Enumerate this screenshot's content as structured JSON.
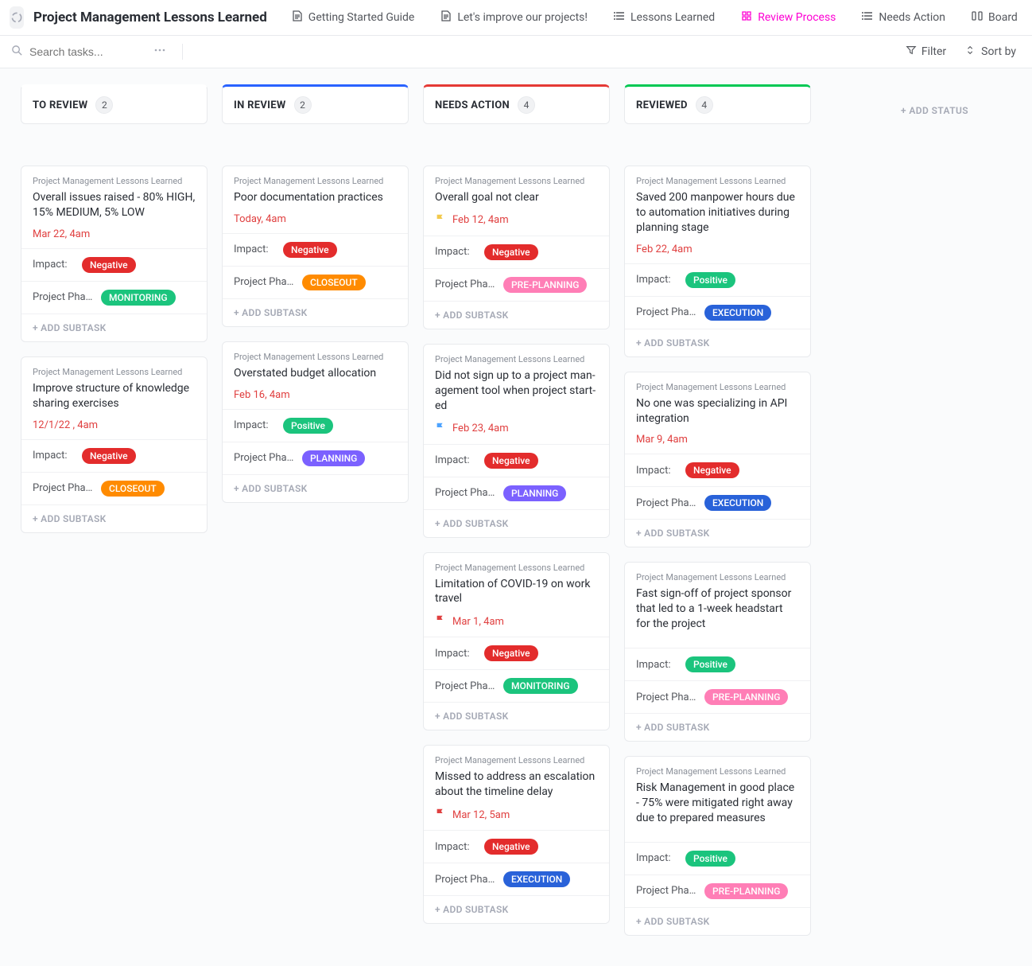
{
  "header": {
    "workspace_title": "Project Management Lessons Learned",
    "tabs": [
      {
        "label": "Getting Started Guide",
        "icon": "doc",
        "active": false
      },
      {
        "label": "Let's improve our projects!",
        "icon": "doc",
        "active": false
      },
      {
        "label": "Lessons Learned",
        "icon": "list",
        "active": false
      },
      {
        "label": "Review Process",
        "icon": "review",
        "active": true
      },
      {
        "label": "Needs Action",
        "icon": "list",
        "active": false
      },
      {
        "label": "Board",
        "icon": "board",
        "active": false
      }
    ]
  },
  "toolbar": {
    "search_placeholder": "Search tasks...",
    "filter_label": "Filter",
    "sort_label": "Sort by"
  },
  "board": {
    "add_status_label": "+ ADD STATUS",
    "add_subtask_label": "+ ADD SUBTASK",
    "impact_label": "Impact:",
    "phase_label": "Project Phase:",
    "project_label": "Project Management Lessons Learned",
    "columns": [
      {
        "title": "TO REVIEW",
        "count": "2",
        "accent": "",
        "cards": [
          {
            "title": "Overall issues raised - 80% HIGH, 15% MEDIUM, 5% LOW",
            "date": "Mar 22, 4am",
            "flag": "",
            "impact": "Negative",
            "impact_class": "b-negative",
            "phase": "MONITORING",
            "phase_class": "b-monitoring"
          },
          {
            "title": "Improve structure of knowledge sharing exercises",
            "date": "12/1/22 , 4am",
            "flag": "",
            "impact": "Negative",
            "impact_class": "b-negative",
            "phase": "CLOSEOUT",
            "phase_class": "b-closeout"
          }
        ]
      },
      {
        "title": "IN REVIEW",
        "count": "2",
        "accent": "accent-blue",
        "cards": [
          {
            "title": "Poor documentation practices",
            "date": "Today, 4am",
            "flag": "",
            "impact": "Negative",
            "impact_class": "b-negative",
            "phase": "CLOSEOUT",
            "phase_class": "b-closeout"
          },
          {
            "title": "Overstated budget allocation",
            "date": "Feb 16, 4am",
            "flag": "",
            "impact": "Positive",
            "impact_class": "b-positive",
            "phase": "PLANNING",
            "phase_class": "b-planning"
          }
        ]
      },
      {
        "title": "NEEDS ACTION",
        "count": "4",
        "accent": "accent-red",
        "cards": [
          {
            "title": "Overall goal not clear",
            "date": "Feb 12, 4am",
            "flag": "yellow",
            "impact": "Negative",
            "impact_class": "b-negative",
            "phase": "PRE-PLANNING",
            "phase_class": "b-preplanning"
          },
          {
            "title": "Did not sign up to a project man­agement tool when project start­ed",
            "date": "Feb 23, 4am",
            "flag": "blue",
            "impact": "Negative",
            "impact_class": "b-negative",
            "phase": "PLANNING",
            "phase_class": "b-planning"
          },
          {
            "title": "Limitation of COVID-19 on work trav­el",
            "date": "Mar 1, 4am",
            "flag": "red",
            "impact": "Negative",
            "impact_class": "b-negative",
            "phase": "MONITORING",
            "phase_class": "b-monitoring"
          },
          {
            "title": "Missed to address an escalation about the timeline delay",
            "date": "Mar 12, 5am",
            "flag": "red",
            "impact": "Negative",
            "impact_class": "b-negative",
            "phase": "EXECUTION",
            "phase_class": "b-execution"
          }
        ]
      },
      {
        "title": "REVIEWED",
        "count": "4",
        "accent": "accent-green",
        "cards": [
          {
            "title": "Saved 200 manpower hours due to automation initiatives during planning stage",
            "date": "Feb 22, 4am",
            "flag": "",
            "impact": "Positive",
            "impact_class": "b-positive",
            "phase": "EXECUTION",
            "phase_class": "b-execution"
          },
          {
            "title": "No one was specializing in API integration",
            "date": "Mar 9, 4am",
            "flag": "",
            "impact": "Negative",
            "impact_class": "b-negative",
            "phase": "EXECUTION",
            "phase_class": "b-execution"
          },
          {
            "title": "Fast sign-off of project sponsor that led to a 1-week headstart for the project",
            "date": "",
            "flag": "",
            "impact": "Positive",
            "impact_class": "b-positive",
            "phase": "PRE-PLANNING",
            "phase_class": "b-preplanning"
          },
          {
            "title": "Risk Management in good place - 75% were mitigated right away due to prepared measures",
            "date": "",
            "flag": "",
            "impact": "Positive",
            "impact_class": "b-positive",
            "phase": "PRE-PLANNING",
            "phase_class": "b-preplanning"
          }
        ]
      }
    ]
  },
  "colors": {
    "flag_yellow": "#f2c94c",
    "flag_blue": "#4da3ff",
    "flag_red": "#e04040"
  }
}
